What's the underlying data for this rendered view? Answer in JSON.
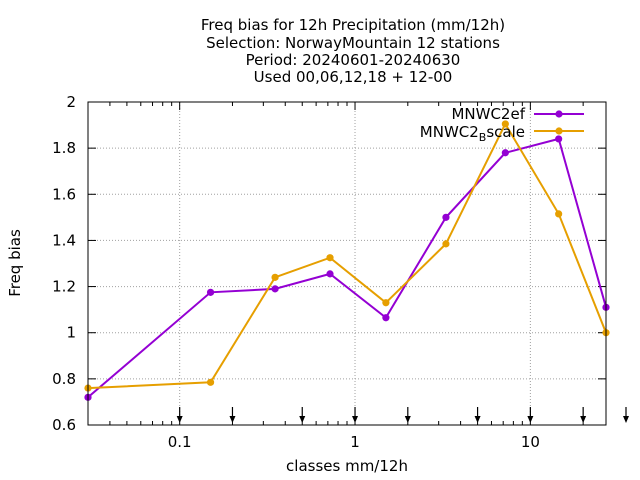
{
  "chart_data": {
    "type": "line",
    "title_lines": [
      "Freq bias  for 12h Precipitation (mm/12h)",
      "Selection: NorwayMountain      12 stations",
      "Period: 20240601-20240630",
      "Used 00,06,12,18 + 12-00"
    ],
    "xlabel": "classes mm/12h",
    "ylabel": "Freq bias",
    "xscale": "log",
    "xlim": [
      0.03,
      27
    ],
    "ylim": [
      0.6,
      2.0
    ],
    "xticks": [
      0.1,
      1,
      10
    ],
    "xtick_labels": [
      "0.1",
      "1",
      "10"
    ],
    "yticks": [
      0.6,
      0.8,
      1.0,
      1.2,
      1.4,
      1.6,
      1.8,
      2.0
    ],
    "ytick_labels": [
      "0.6",
      "0.8",
      "1",
      "1.2",
      "1.4",
      "1.6",
      "1.8",
      "2"
    ],
    "grid": true,
    "legend_position": "top-right",
    "threshold_arrows": [
      0.1,
      0.2,
      0.5,
      1,
      2,
      5,
      10,
      20,
      50
    ],
    "series": [
      {
        "name": "MNWC2_ef",
        "name_main": "MNWC2",
        "name_sub": "",
        "name_suffix": "ef",
        "color": "#9400d3",
        "x": [
          0.03,
          0.15,
          0.35,
          0.72,
          1.5,
          3.3,
          7.2,
          14.5,
          27
        ],
        "y": [
          0.72,
          1.175,
          1.19,
          1.255,
          1.065,
          1.5,
          1.78,
          1.84,
          1.11
        ]
      },
      {
        "name": "MNWC2_Bscale",
        "name_main": "MNWC2",
        "name_sub": "B",
        "name_suffix": "scale",
        "color": "#e69f00",
        "x": [
          0.03,
          0.15,
          0.35,
          0.72,
          1.5,
          3.3,
          7.2,
          14.5,
          27
        ],
        "y": [
          0.76,
          0.785,
          1.24,
          1.325,
          1.13,
          1.385,
          1.905,
          1.515,
          1.0
        ]
      }
    ]
  }
}
